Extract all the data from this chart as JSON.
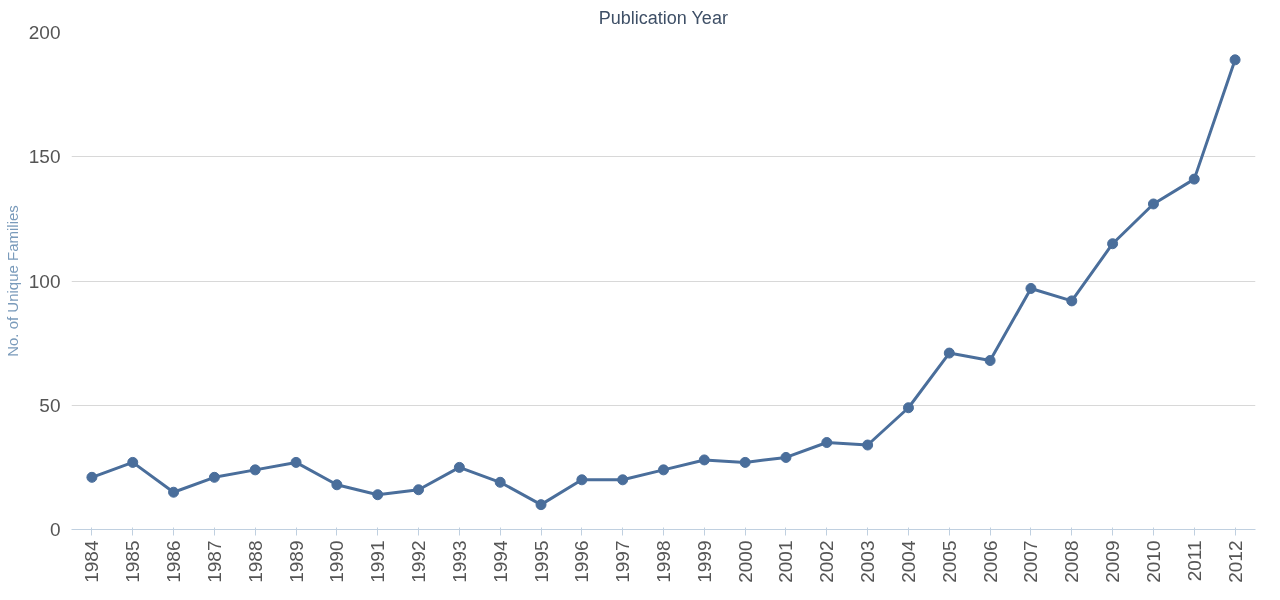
{
  "chart_data": {
    "type": "line",
    "title": "Publication Year",
    "ylabel": "No. of Unique Families",
    "categories": [
      "1984",
      "1985",
      "1986",
      "1987",
      "1988",
      "1989",
      "1990",
      "1991",
      "1992",
      "1993",
      "1994",
      "1995",
      "1996",
      "1997",
      "1998",
      "1999",
      "2000",
      "2001",
      "2002",
      "2003",
      "2004",
      "2005",
      "2006",
      "2007",
      "2008",
      "2009",
      "2010",
      "2011",
      "2012"
    ],
    "series": [
      {
        "color": "#4a6e9b",
        "values": [
          21,
          27,
          15,
          21,
          24,
          27,
          18,
          14,
          16,
          25,
          19,
          10,
          20,
          20,
          24,
          28,
          27,
          29,
          35,
          34,
          49,
          71,
          68,
          97,
          92,
          115,
          131,
          141,
          189
        ]
      }
    ],
    "ylim": [
      0,
      200
    ],
    "yticks": [
      0,
      50,
      100,
      150,
      200
    ],
    "grid": "y",
    "marker": "circle",
    "line_style": "solid"
  }
}
